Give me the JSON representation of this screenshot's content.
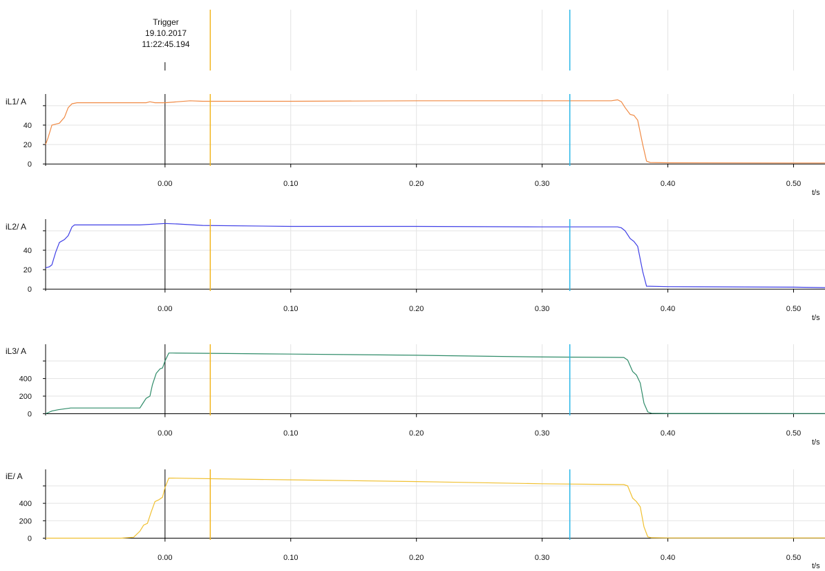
{
  "trigger": {
    "label": "Trigger",
    "date": "19.10.2017",
    "time": "11:22:45.194"
  },
  "colors": {
    "cursor_a": "#f2b51f",
    "cursor_b": "#29b6e8",
    "trigger_line": "#000000",
    "grid": "#e3e3e3"
  },
  "chart_data": [
    {
      "type": "line",
      "ylabel": "iL1/ A",
      "xlabel": "t/s",
      "color": "#f08a44",
      "xlim": [
        -0.095,
        0.525
      ],
      "ylim": [
        -2,
        72
      ],
      "yticks": [
        0,
        20,
        40
      ],
      "xticks": [
        0.0,
        0.1,
        0.2,
        0.3,
        0.4,
        0.5
      ],
      "xtick_labels": [
        "0.00",
        "0.10",
        "0.20",
        "0.30",
        "0.40",
        "0.50"
      ],
      "grid": true,
      "x": [
        -0.095,
        -0.093,
        -0.09,
        -0.087,
        -0.084,
        -0.08,
        -0.077,
        -0.074,
        -0.07,
        -0.06,
        -0.03,
        -0.015,
        -0.012,
        -0.008,
        0.0,
        0.01,
        0.02,
        0.03,
        0.1,
        0.2,
        0.3,
        0.355,
        0.36,
        0.363,
        0.366,
        0.37,
        0.373,
        0.376,
        0.38,
        0.383,
        0.386,
        0.4,
        0.5,
        0.525
      ],
      "y": [
        20,
        27,
        40,
        41,
        42,
        48,
        58,
        62,
        63,
        63,
        63,
        63,
        64,
        63,
        63,
        64,
        65,
        64.5,
        64.5,
        65,
        65,
        65,
        66,
        64,
        58,
        51,
        50,
        45,
        20,
        3,
        1.5,
        1.2,
        1,
        1
      ]
    },
    {
      "type": "line",
      "ylabel": "iL2/ A",
      "xlabel": "t/s",
      "color": "#3f3fe6",
      "xlim": [
        -0.095,
        0.525
      ],
      "ylim": [
        -2,
        72
      ],
      "yticks": [
        0,
        20,
        40
      ],
      "xticks": [
        0.0,
        0.1,
        0.2,
        0.3,
        0.4,
        0.5
      ],
      "xtick_labels": [
        "0.00",
        "0.10",
        "0.20",
        "0.30",
        "0.40",
        "0.50"
      ],
      "grid": true,
      "x": [
        -0.095,
        -0.092,
        -0.09,
        -0.087,
        -0.084,
        -0.08,
        -0.077,
        -0.074,
        -0.072,
        -0.05,
        -0.02,
        0.0,
        0.01,
        0.03,
        0.1,
        0.2,
        0.3,
        0.36,
        0.363,
        0.366,
        0.37,
        0.373,
        0.376,
        0.38,
        0.383,
        0.4,
        0.5,
        0.525
      ],
      "y": [
        22,
        23,
        25,
        38,
        48,
        51,
        55,
        64,
        66,
        66,
        66,
        67.5,
        67,
        65.5,
        64.5,
        64.5,
        64,
        64,
        63,
        60,
        52,
        49,
        44,
        18,
        3,
        2.5,
        2,
        1.5
      ]
    },
    {
      "type": "line",
      "ylabel": "iL3/ A",
      "xlabel": "t/s",
      "color": "#2e8b68",
      "xlim": [
        -0.095,
        0.525
      ],
      "ylim": [
        -20,
        790
      ],
      "yticks": [
        0,
        200,
        400
      ],
      "xticks": [
        0.0,
        0.1,
        0.2,
        0.3,
        0.4,
        0.5
      ],
      "xtick_labels": [
        "0.00",
        "0.10",
        "0.20",
        "0.30",
        "0.40",
        "0.50"
      ],
      "grid": true,
      "x": [
        -0.095,
        -0.09,
        -0.085,
        -0.075,
        -0.02,
        -0.018,
        -0.015,
        -0.012,
        -0.01,
        -0.007,
        -0.004,
        -0.002,
        0.0,
        0.003,
        0.006,
        0.05,
        0.1,
        0.2,
        0.3,
        0.365,
        0.368,
        0.372,
        0.375,
        0.378,
        0.381,
        0.384,
        0.387,
        0.4,
        0.5,
        0.525
      ],
      "y": [
        0,
        30,
        45,
        65,
        65,
        110,
        175,
        200,
        330,
        460,
        510,
        520,
        600,
        690,
        690,
        685,
        678,
        665,
        645,
        640,
        610,
        480,
        440,
        350,
        120,
        20,
        5,
        3,
        2,
        2
      ]
    },
    {
      "type": "line",
      "ylabel": "iE/ A",
      "xlabel": "t/s",
      "color": "#f0c030",
      "xlim": [
        -0.095,
        0.525
      ],
      "ylim": [
        -20,
        790
      ],
      "yticks": [
        0,
        200,
        400
      ],
      "xticks": [
        0.0,
        0.1,
        0.2,
        0.3,
        0.4,
        0.5
      ],
      "xtick_labels": [
        "0.00",
        "0.10",
        "0.20",
        "0.30",
        "0.40",
        "0.50"
      ],
      "grid": true,
      "x": [
        -0.095,
        -0.05,
        -0.04,
        -0.035,
        -0.025,
        -0.02,
        -0.017,
        -0.014,
        -0.011,
        -0.008,
        -0.005,
        -0.002,
        0.0,
        0.003,
        0.006,
        0.05,
        0.1,
        0.2,
        0.3,
        0.365,
        0.368,
        0.372,
        0.375,
        0.378,
        0.381,
        0.384,
        0.387,
        0.4,
        0.5,
        0.525
      ],
      "y": [
        0,
        0,
        0,
        0,
        10,
        80,
        150,
        170,
        300,
        420,
        440,
        470,
        580,
        690,
        690,
        680,
        670,
        650,
        625,
        615,
        600,
        460,
        420,
        360,
        130,
        15,
        5,
        2,
        2,
        2
      ]
    }
  ],
  "cursors": {
    "trigger_x": 0.0,
    "cursor_a_x": 0.036,
    "cursor_b_x": 0.322
  }
}
